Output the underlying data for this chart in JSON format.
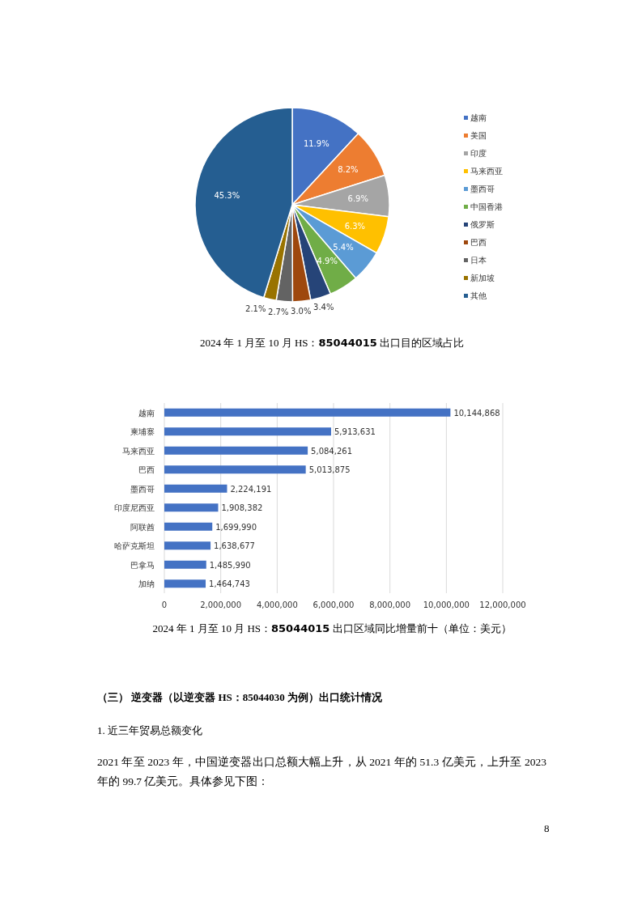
{
  "chart_data": [
    {
      "type": "pie",
      "title": "2024 年 1 月至 10 月 HS：**85044015** 出口目的区域占比",
      "categories": [
        "越南",
        "美国",
        "印度",
        "马来西亚",
        "墨西哥",
        "中国香港",
        "俄罗斯",
        "巴西",
        "日本",
        "新加坡",
        "其他"
      ],
      "values": [
        11.9,
        8.2,
        6.9,
        6.3,
        5.4,
        4.9,
        3.4,
        3.0,
        2.7,
        2.1,
        45.3
      ],
      "colors": [
        "#4472c4",
        "#ed7d31",
        "#a5a5a5",
        "#ffc000",
        "#5b9bd5",
        "#70ad47",
        "#264478",
        "#9e480e",
        "#636363",
        "#997300",
        "#255e91"
      ],
      "value_labels": [
        "11.9%",
        "8.2%",
        "6.9%",
        "6.3%",
        "5.4%",
        "4.9%",
        "3.4%",
        "3.0%",
        "2.7%",
        "2.1%",
        "45.3%"
      ],
      "legend": "right"
    },
    {
      "type": "bar",
      "orientation": "horizontal",
      "title": "2024 年 1 月至 10 月 HS：**85044015** 出口区域同比增量前十（单位：美元）",
      "categories": [
        "越南",
        "柬埔寨",
        "马来西亚",
        "巴西",
        "墨西哥",
        "印度尼西亚",
        "阿联酋",
        "哈萨克斯坦",
        "巴拿马",
        "加纳"
      ],
      "values": [
        10144868,
        5913631,
        5084261,
        5013875,
        2224191,
        1908382,
        1699990,
        1638677,
        1485990,
        1464743
      ],
      "value_labels": [
        "10,144,868",
        "5,913,631",
        "5,084,261",
        "5,013,875",
        "2,224,191",
        "1,908,382",
        "1,699,990",
        "1,638,677",
        "1,485,990",
        "1,464,743"
      ],
      "color": "#4472c4",
      "xlim": [
        0,
        12000000
      ],
      "xticks": [
        0,
        {
          "value": 2000000,
          "label": "2,000,000"
        },
        {
          "value": 4000000,
          "label": "4,000,000"
        },
        {
          "value": 6000000,
          "label": "6,000,000"
        },
        {
          "value": 8000000,
          "label": "8,000,000"
        },
        {
          "value": 10000000,
          "label": "10,000,000"
        },
        {
          "value": 12000000,
          "label": "12,000,000"
        }
      ],
      "grid": "x"
    },
    {
      "type": "other",
      "title": "（三） 逆变器（以逆变器 HS：85044030 为例）出口统计情况",
      "annotations": [
        "1.  近三年贸易总额变化",
        "2021 年至 2023 年，中国逆变器出口总额大幅上升，从 2021 年的 51.3 亿美元，上升至 2023 年的 99.7 亿美元。具体参见下图：",
        "8"
      ]
    }
  ]
}
